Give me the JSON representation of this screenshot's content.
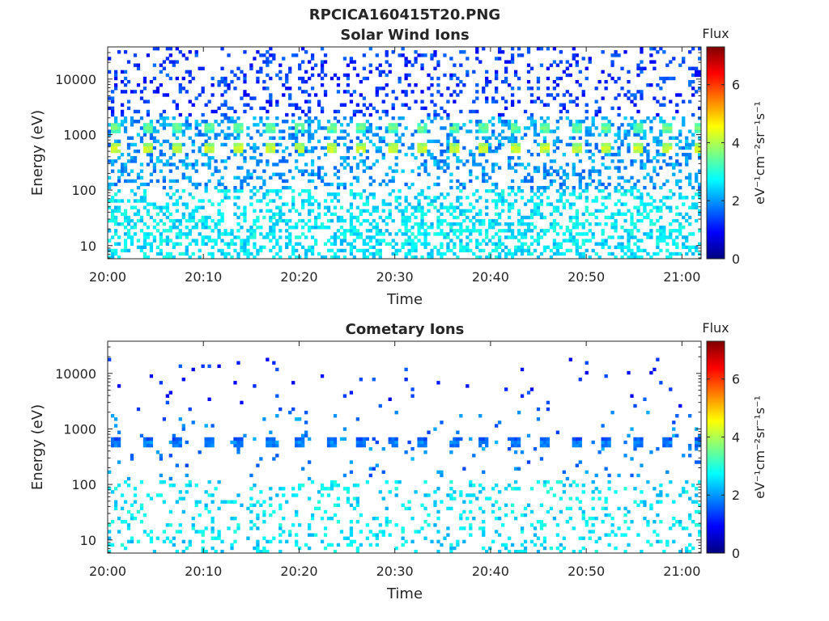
{
  "figure": {
    "title": "RPCICA160415T20.PNG"
  },
  "chart_data": [
    {
      "type": "heatmap",
      "title": "Solar Wind Ions",
      "xlabel": "Time",
      "ylabel": "Energy (eV)",
      "y_scale": "log",
      "ylim": [
        5.8,
        38000
      ],
      "xlim": [
        "20:00",
        "21:02"
      ],
      "x_ticks": [
        "20:00",
        "20:10",
        "20:20",
        "20:30",
        "20:40",
        "20:50",
        "21:00"
      ],
      "y_ticks": [
        10,
        100,
        1000,
        10000
      ],
      "y_tick_labels": [
        "10",
        "100",
        "1000",
        "10000"
      ],
      "colorbar": {
        "title": "Flux",
        "label": "eV⁻¹cm⁻²sr⁻¹s⁻¹",
        "range": [
          0,
          7.3
        ],
        "ticks": [
          0,
          2,
          4,
          6
        ],
        "colormap": "jet"
      },
      "beam_period_minutes": 3.2,
      "beam_peaks": [
        {
          "energy_eV": 550,
          "log_flux": 4.3
        },
        {
          "energy_eV": 1350,
          "log_flux": 3.6
        }
      ],
      "background_levels": [
        {
          "energy_range_eV": [
            6,
            100
          ],
          "log_flux": 2.6
        },
        {
          "energy_range_eV": [
            100,
            2000
          ],
          "log_flux": 2.0
        },
        {
          "energy_range_eV": [
            2000,
            38000
          ],
          "log_flux": 1.3
        }
      ]
    },
    {
      "type": "heatmap",
      "title": "Cometary Ions",
      "xlabel": "Time",
      "ylabel": "Energy (eV)",
      "y_scale": "log",
      "ylim": [
        5.8,
        38000
      ],
      "xlim": [
        "20:00",
        "21:02"
      ],
      "x_ticks": [
        "20:00",
        "20:10",
        "20:20",
        "20:30",
        "20:40",
        "20:50",
        "21:00"
      ],
      "y_ticks": [
        10,
        100,
        1000,
        10000
      ],
      "y_tick_labels": [
        "10",
        "100",
        "1000",
        "10000"
      ],
      "colorbar": {
        "title": "Flux",
        "label": "eV⁻¹cm⁻²sr⁻¹s⁻¹",
        "range": [
          0,
          7.3
        ],
        "ticks": [
          0,
          2,
          4,
          6
        ],
        "colormap": "jet"
      },
      "beam_period_minutes": 3.2,
      "beam_peaks": [
        {
          "energy_eV": 550,
          "log_flux": 2.0
        }
      ],
      "background_levels": [
        {
          "energy_range_eV": [
            6,
            120
          ],
          "log_flux": 2.6
        },
        {
          "energy_range_eV": [
            120,
            2000
          ],
          "log_flux": 1.8
        },
        {
          "energy_range_eV": [
            2000,
            20000
          ],
          "log_flux": 1.2
        }
      ]
    }
  ]
}
